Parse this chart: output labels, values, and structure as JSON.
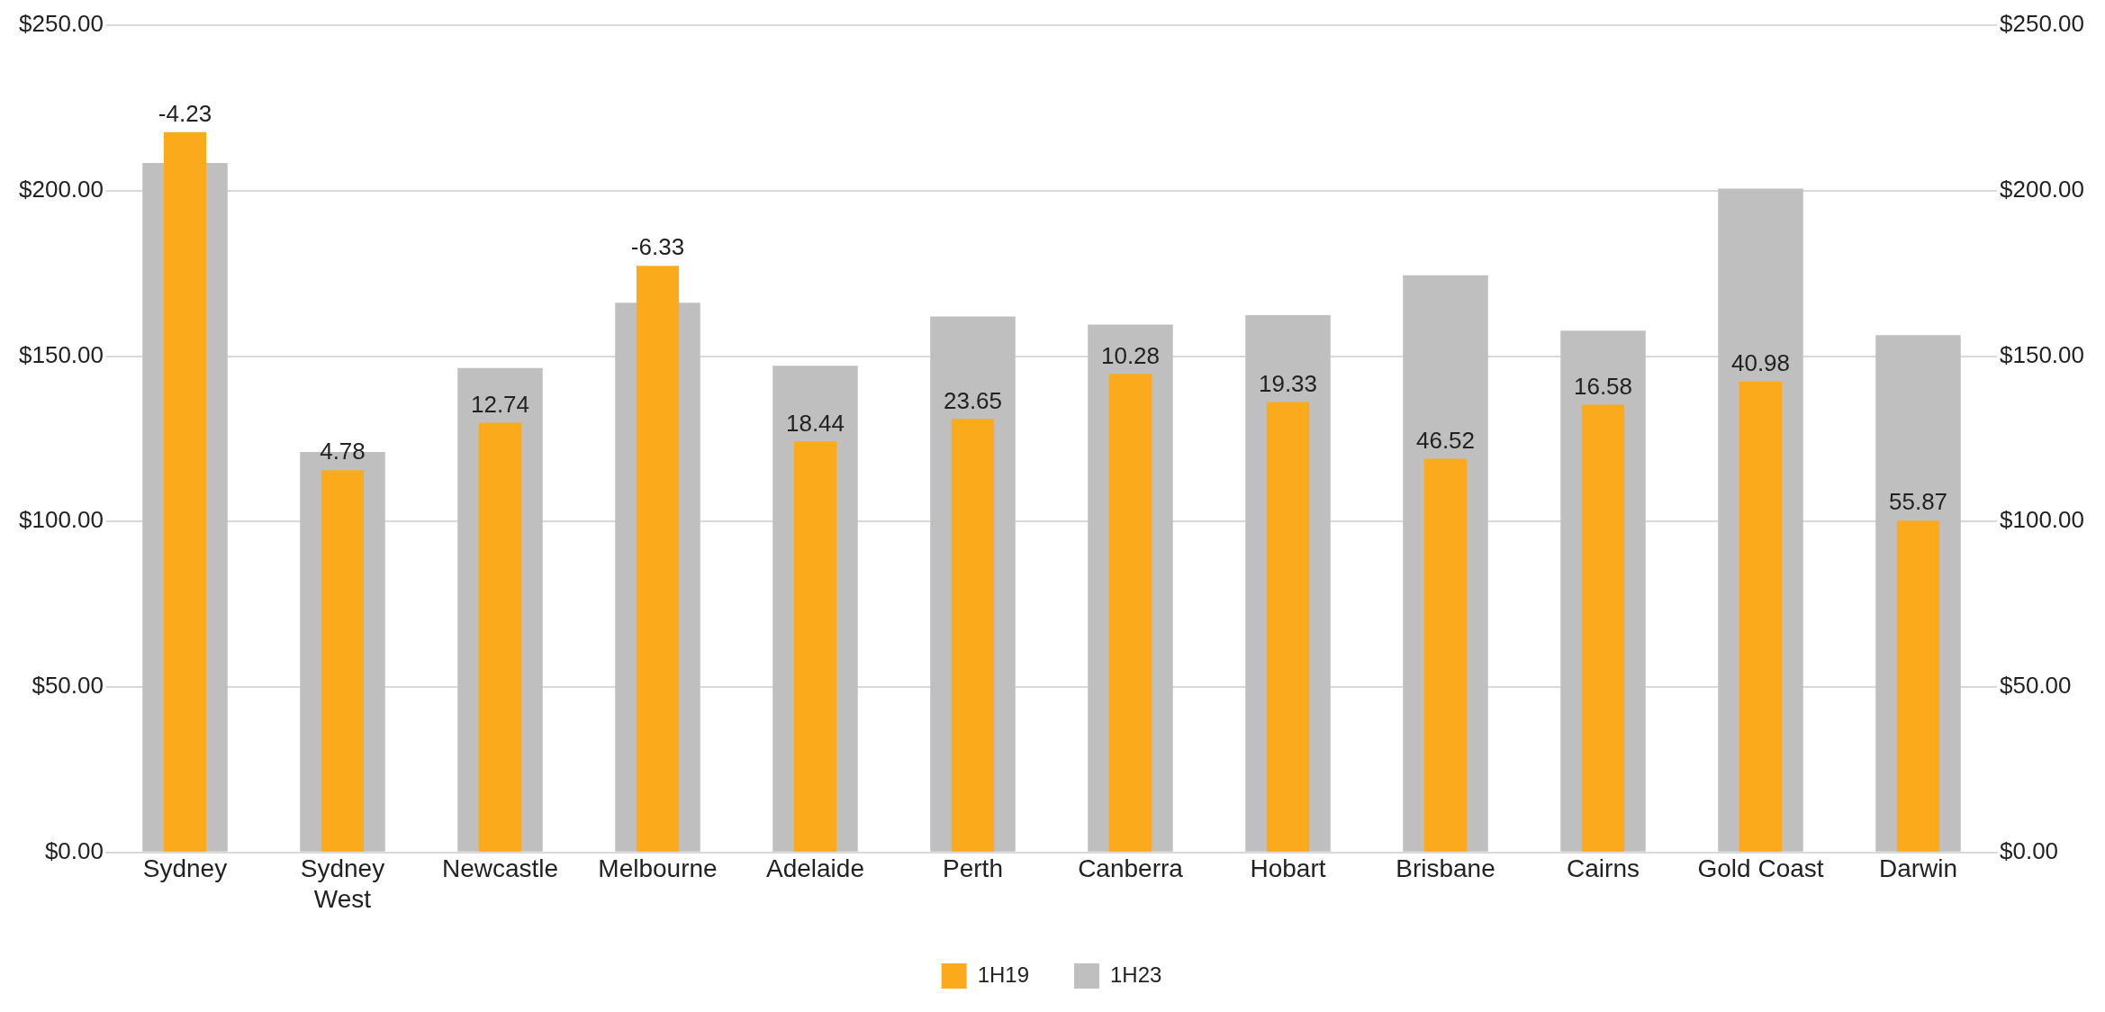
{
  "chart_data": {
    "type": "bar",
    "categories": [
      "Sydney",
      "Sydney West",
      "Newcastle",
      "Melbourne",
      "Adelaide",
      "Perth",
      "Canberra",
      "Hobart",
      "Brisbane",
      "Cairns",
      "Gold Coast",
      "Darwin"
    ],
    "series": [
      {
        "name": "1H19",
        "color": "#fbaa1c",
        "values": [
          217.7,
          115.5,
          129.9,
          177.3,
          124.2,
          131.0,
          144.6,
          136.1,
          119.0,
          135.3,
          142.3,
          100.3
        ]
      },
      {
        "name": "1H23",
        "color": "#bfbfbf",
        "values": [
          208.4,
          121.0,
          146.4,
          166.1,
          147.1,
          162.0,
          159.5,
          162.4,
          174.4,
          157.7,
          200.6,
          156.3
        ]
      }
    ],
    "ylim": [
      0,
      250
    ],
    "yticks": [
      {
        "value": 0,
        "label": "$0.00"
      },
      {
        "value": 50,
        "label": "$50.00"
      },
      {
        "value": 100,
        "label": "$100.00"
      },
      {
        "value": 150,
        "label": "$150.00"
      },
      {
        "value": 200,
        "label": "$200.00"
      },
      {
        "value": 250,
        "label": "$250.00"
      }
    ],
    "y2lim": [
      0,
      250
    ],
    "y2ticks": [
      {
        "value": 0,
        "label": "$0.00"
      },
      {
        "value": 50,
        "label": "$50.00"
      },
      {
        "value": 100,
        "label": "$100.00"
      },
      {
        "value": 150,
        "label": "$150.00"
      },
      {
        "value": 200,
        "label": "$200.00"
      },
      {
        "value": 250,
        "label": "$250.00"
      }
    ],
    "annotations": [
      {
        "text": "-4.23",
        "x": "Sydney",
        "y": 217.7
      },
      {
        "text": "4.78",
        "x": "Sydney West",
        "y": 115.5
      },
      {
        "text": "12.74",
        "x": "Newcastle",
        "y": 129.9
      },
      {
        "text": "-6.33",
        "x": "Melbourne",
        "y": 177.3
      },
      {
        "text": "18.44",
        "x": "Adelaide",
        "y": 124.2
      },
      {
        "text": "23.65",
        "x": "Perth",
        "y": 131.0
      },
      {
        "text": "10.28",
        "x": "Canberra",
        "y": 144.6
      },
      {
        "text": "19.33",
        "x": "Hobart",
        "y": 136.1
      },
      {
        "text": "46.52",
        "x": "Brisbane",
        "y": 119.0
      },
      {
        "text": "16.58",
        "x": "Cairns",
        "y": 135.3
      },
      {
        "text": "40.98",
        "x": "Gold Coast",
        "y": 142.3
      },
      {
        "text": "55.87",
        "x": "Darwin",
        "y": 100.3
      }
    ],
    "grid": "y",
    "legend": "bottom"
  }
}
